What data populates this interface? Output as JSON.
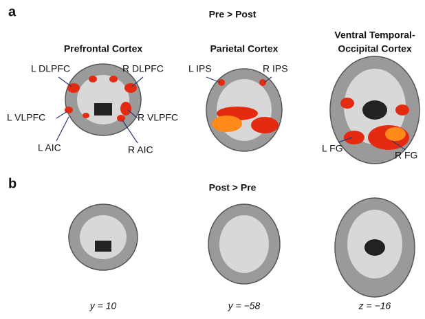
{
  "panel_a": {
    "label": "a",
    "title": "Pre > Post",
    "columns": [
      "Prefrontal Cortex",
      "Parietal Cortex",
      "Ventral Temporal-",
      "Occipital Cortex"
    ],
    "regions": [
      "L DLPFC",
      "R DLPFC",
      "L VLPFC",
      "R VLPFC",
      "L AIC",
      "R AIC",
      "L IPS",
      "R IPS",
      "L FG",
      "R FG"
    ]
  },
  "panel_b": {
    "label": "b",
    "title": "Post > Pre",
    "coordinates": [
      "y = 10",
      "y = −58",
      "z = −16"
    ]
  }
}
